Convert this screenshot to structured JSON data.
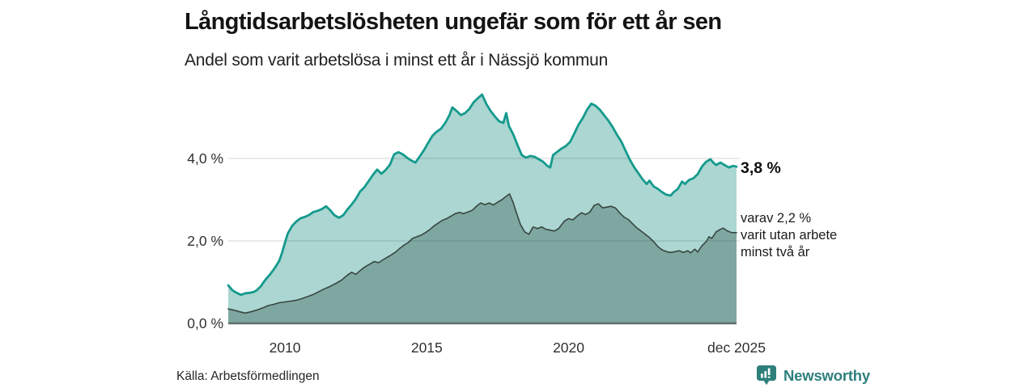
{
  "header": {
    "title": "Långtidsarbetslösheten ungefär som för ett år sen",
    "subtitle": "Andel som varit arbetslösa i minst ett år i Nässjö kommun"
  },
  "chart_data": {
    "type": "area",
    "title": "Långtidsarbetslösheten ungefär som för ett år sen",
    "subtitle": "Andel som varit arbetslösa i minst ett år i Nässjö kommun",
    "grid": "horizontal",
    "x_domain": [
      2008.0,
      2025.92
    ],
    "y_domain": [
      0,
      5.9
    ],
    "baseline_color": "#5f6f6b",
    "gridline_color": "rgba(0,0,0,0.13)",
    "yticks": [
      {
        "value": 0,
        "label": "0,0 %"
      },
      {
        "value": 2,
        "label": "2,0 %"
      },
      {
        "value": 4,
        "label": "4,0 %"
      }
    ],
    "xticks": [
      {
        "value": 2010,
        "label": "2010"
      },
      {
        "value": 2015,
        "label": "2015"
      },
      {
        "value": 2020,
        "label": "2020"
      },
      {
        "value": 2025.92,
        "label": "dec 2025"
      }
    ],
    "annotations": {
      "latest_total": "3,8 %",
      "secondary_lines": [
        "varav 2,2 %",
        "varit utan arbete",
        "minst två år"
      ]
    },
    "series": [
      {
        "name": "arbetslosa-minst-ett-ar",
        "label": "Andel arbetslösa minst ett år",
        "latest_value": 3.8,
        "color": "#149a8d",
        "fill": "#abd6d1",
        "points": [
          [
            2008.0,
            0.92
          ],
          [
            2008.15,
            0.8
          ],
          [
            2008.3,
            0.74
          ],
          [
            2008.45,
            0.69
          ],
          [
            2008.6,
            0.73
          ],
          [
            2008.75,
            0.74
          ],
          [
            2008.9,
            0.76
          ],
          [
            2009.0,
            0.8
          ],
          [
            2009.15,
            0.9
          ],
          [
            2009.3,
            1.05
          ],
          [
            2009.5,
            1.21
          ],
          [
            2009.65,
            1.35
          ],
          [
            2009.8,
            1.52
          ],
          [
            2009.9,
            1.72
          ],
          [
            2010.0,
            1.96
          ],
          [
            2010.1,
            2.18
          ],
          [
            2010.25,
            2.36
          ],
          [
            2010.4,
            2.47
          ],
          [
            2010.55,
            2.55
          ],
          [
            2010.7,
            2.58
          ],
          [
            2010.85,
            2.63
          ],
          [
            2011.0,
            2.7
          ],
          [
            2011.15,
            2.73
          ],
          [
            2011.3,
            2.77
          ],
          [
            2011.45,
            2.84
          ],
          [
            2011.6,
            2.74
          ],
          [
            2011.75,
            2.62
          ],
          [
            2011.9,
            2.56
          ],
          [
            2012.05,
            2.62
          ],
          [
            2012.2,
            2.76
          ],
          [
            2012.35,
            2.88
          ],
          [
            2012.5,
            3.02
          ],
          [
            2012.65,
            3.2
          ],
          [
            2012.8,
            3.3
          ],
          [
            2012.95,
            3.45
          ],
          [
            2013.1,
            3.6
          ],
          [
            2013.25,
            3.73
          ],
          [
            2013.4,
            3.63
          ],
          [
            2013.55,
            3.72
          ],
          [
            2013.7,
            3.85
          ],
          [
            2013.85,
            4.1
          ],
          [
            2014.0,
            4.15
          ],
          [
            2014.15,
            4.1
          ],
          [
            2014.3,
            4.02
          ],
          [
            2014.45,
            3.95
          ],
          [
            2014.6,
            3.9
          ],
          [
            2014.75,
            4.05
          ],
          [
            2014.9,
            4.2
          ],
          [
            2015.05,
            4.38
          ],
          [
            2015.2,
            4.55
          ],
          [
            2015.35,
            4.65
          ],
          [
            2015.5,
            4.72
          ],
          [
            2015.65,
            4.86
          ],
          [
            2015.8,
            5.05
          ],
          [
            2015.9,
            5.24
          ],
          [
            2016.05,
            5.15
          ],
          [
            2016.2,
            5.05
          ],
          [
            2016.35,
            5.1
          ],
          [
            2016.5,
            5.2
          ],
          [
            2016.65,
            5.36
          ],
          [
            2016.8,
            5.46
          ],
          [
            2016.95,
            5.55
          ],
          [
            2017.1,
            5.32
          ],
          [
            2017.25,
            5.15
          ],
          [
            2017.4,
            5.02
          ],
          [
            2017.55,
            4.9
          ],
          [
            2017.7,
            4.86
          ],
          [
            2017.8,
            5.1
          ],
          [
            2017.9,
            4.78
          ],
          [
            2018.05,
            4.58
          ],
          [
            2018.2,
            4.32
          ],
          [
            2018.35,
            4.08
          ],
          [
            2018.5,
            4.02
          ],
          [
            2018.65,
            4.06
          ],
          [
            2018.8,
            4.04
          ],
          [
            2018.95,
            3.98
          ],
          [
            2019.1,
            3.92
          ],
          [
            2019.25,
            3.82
          ],
          [
            2019.35,
            3.78
          ],
          [
            2019.45,
            4.08
          ],
          [
            2019.6,
            4.16
          ],
          [
            2019.75,
            4.24
          ],
          [
            2019.9,
            4.3
          ],
          [
            2020.05,
            4.4
          ],
          [
            2020.2,
            4.6
          ],
          [
            2020.35,
            4.82
          ],
          [
            2020.5,
            4.98
          ],
          [
            2020.65,
            5.18
          ],
          [
            2020.8,
            5.33
          ],
          [
            2020.95,
            5.28
          ],
          [
            2021.1,
            5.18
          ],
          [
            2021.25,
            5.05
          ],
          [
            2021.4,
            4.92
          ],
          [
            2021.55,
            4.76
          ],
          [
            2021.7,
            4.58
          ],
          [
            2021.85,
            4.42
          ],
          [
            2022.0,
            4.2
          ],
          [
            2022.15,
            3.98
          ],
          [
            2022.3,
            3.8
          ],
          [
            2022.45,
            3.65
          ],
          [
            2022.6,
            3.5
          ],
          [
            2022.75,
            3.38
          ],
          [
            2022.85,
            3.46
          ],
          [
            2023.0,
            3.32
          ],
          [
            2023.15,
            3.26
          ],
          [
            2023.3,
            3.18
          ],
          [
            2023.45,
            3.12
          ],
          [
            2023.6,
            3.1
          ],
          [
            2023.7,
            3.18
          ],
          [
            2023.85,
            3.26
          ],
          [
            2024.0,
            3.44
          ],
          [
            2024.1,
            3.38
          ],
          [
            2024.25,
            3.48
          ],
          [
            2024.4,
            3.52
          ],
          [
            2024.55,
            3.62
          ],
          [
            2024.7,
            3.8
          ],
          [
            2024.85,
            3.92
          ],
          [
            2025.0,
            3.98
          ],
          [
            2025.1,
            3.9
          ],
          [
            2025.2,
            3.84
          ],
          [
            2025.35,
            3.9
          ],
          [
            2025.5,
            3.84
          ],
          [
            2025.65,
            3.78
          ],
          [
            2025.8,
            3.82
          ],
          [
            2025.92,
            3.8
          ]
        ]
      },
      {
        "name": "utan-arbete-minst-tva-ar",
        "label": "varav varit utan arbete minst två år",
        "latest_value": 2.2,
        "color": "#384641",
        "fill": "#7ea7a1",
        "points": [
          [
            2008.0,
            0.35
          ],
          [
            2008.2,
            0.32
          ],
          [
            2008.4,
            0.28
          ],
          [
            2008.6,
            0.25
          ],
          [
            2008.8,
            0.28
          ],
          [
            2009.0,
            0.32
          ],
          [
            2009.2,
            0.37
          ],
          [
            2009.4,
            0.43
          ],
          [
            2009.6,
            0.46
          ],
          [
            2009.8,
            0.5
          ],
          [
            2010.0,
            0.52
          ],
          [
            2010.2,
            0.54
          ],
          [
            2010.4,
            0.56
          ],
          [
            2010.6,
            0.6
          ],
          [
            2010.8,
            0.65
          ],
          [
            2011.0,
            0.7
          ],
          [
            2011.2,
            0.77
          ],
          [
            2011.4,
            0.84
          ],
          [
            2011.6,
            0.9
          ],
          [
            2011.8,
            0.97
          ],
          [
            2012.0,
            1.05
          ],
          [
            2012.2,
            1.17
          ],
          [
            2012.35,
            1.24
          ],
          [
            2012.5,
            1.19
          ],
          [
            2012.65,
            1.28
          ],
          [
            2012.8,
            1.36
          ],
          [
            2013.0,
            1.44
          ],
          [
            2013.15,
            1.5
          ],
          [
            2013.3,
            1.47
          ],
          [
            2013.45,
            1.54
          ],
          [
            2013.6,
            1.6
          ],
          [
            2013.75,
            1.66
          ],
          [
            2013.9,
            1.73
          ],
          [
            2014.05,
            1.82
          ],
          [
            2014.2,
            1.9
          ],
          [
            2014.35,
            1.96
          ],
          [
            2014.5,
            2.06
          ],
          [
            2014.65,
            2.1
          ],
          [
            2014.8,
            2.14
          ],
          [
            2014.95,
            2.2
          ],
          [
            2015.1,
            2.27
          ],
          [
            2015.25,
            2.36
          ],
          [
            2015.4,
            2.43
          ],
          [
            2015.55,
            2.5
          ],
          [
            2015.7,
            2.54
          ],
          [
            2015.85,
            2.6
          ],
          [
            2016.0,
            2.66
          ],
          [
            2016.15,
            2.69
          ],
          [
            2016.3,
            2.66
          ],
          [
            2016.45,
            2.7
          ],
          [
            2016.6,
            2.74
          ],
          [
            2016.75,
            2.84
          ],
          [
            2016.9,
            2.92
          ],
          [
            2017.05,
            2.88
          ],
          [
            2017.2,
            2.92
          ],
          [
            2017.35,
            2.87
          ],
          [
            2017.5,
            2.94
          ],
          [
            2017.65,
            3.0
          ],
          [
            2017.8,
            3.08
          ],
          [
            2017.92,
            3.14
          ],
          [
            2018.05,
            2.92
          ],
          [
            2018.15,
            2.7
          ],
          [
            2018.3,
            2.4
          ],
          [
            2018.45,
            2.22
          ],
          [
            2018.6,
            2.16
          ],
          [
            2018.75,
            2.34
          ],
          [
            2018.9,
            2.3
          ],
          [
            2019.05,
            2.34
          ],
          [
            2019.2,
            2.28
          ],
          [
            2019.35,
            2.26
          ],
          [
            2019.5,
            2.24
          ],
          [
            2019.65,
            2.3
          ],
          [
            2019.85,
            2.48
          ],
          [
            2020.0,
            2.54
          ],
          [
            2020.15,
            2.51
          ],
          [
            2020.3,
            2.6
          ],
          [
            2020.45,
            2.68
          ],
          [
            2020.6,
            2.64
          ],
          [
            2020.75,
            2.7
          ],
          [
            2020.9,
            2.86
          ],
          [
            2021.05,
            2.9
          ],
          [
            2021.2,
            2.8
          ],
          [
            2021.35,
            2.82
          ],
          [
            2021.5,
            2.84
          ],
          [
            2021.65,
            2.8
          ],
          [
            2021.8,
            2.68
          ],
          [
            2021.95,
            2.58
          ],
          [
            2022.1,
            2.52
          ],
          [
            2022.25,
            2.42
          ],
          [
            2022.4,
            2.32
          ],
          [
            2022.55,
            2.24
          ],
          [
            2022.7,
            2.16
          ],
          [
            2022.85,
            2.08
          ],
          [
            2023.0,
            1.98
          ],
          [
            2023.15,
            1.86
          ],
          [
            2023.3,
            1.78
          ],
          [
            2023.45,
            1.74
          ],
          [
            2023.6,
            1.72
          ],
          [
            2023.75,
            1.74
          ],
          [
            2023.9,
            1.76
          ],
          [
            2024.05,
            1.72
          ],
          [
            2024.2,
            1.76
          ],
          [
            2024.3,
            1.71
          ],
          [
            2024.45,
            1.8
          ],
          [
            2024.55,
            1.73
          ],
          [
            2024.7,
            1.88
          ],
          [
            2024.85,
            1.98
          ],
          [
            2024.95,
            2.1
          ],
          [
            2025.05,
            2.06
          ],
          [
            2025.2,
            2.22
          ],
          [
            2025.35,
            2.28
          ],
          [
            2025.45,
            2.31
          ],
          [
            2025.6,
            2.24
          ],
          [
            2025.75,
            2.2
          ],
          [
            2025.92,
            2.2
          ]
        ]
      }
    ]
  },
  "footer": {
    "source": "Källa: Arbetsförmedlingen",
    "brand": "Newsworthy",
    "brand_color": "#2e7f7c"
  }
}
